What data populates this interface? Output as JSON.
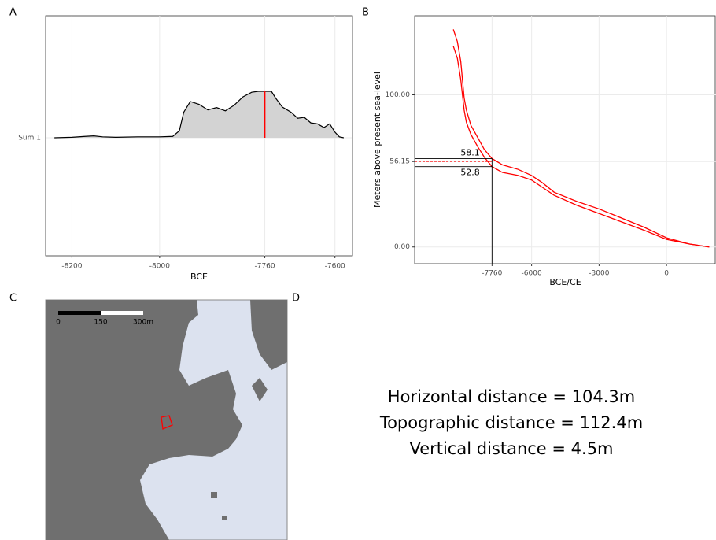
{
  "panels": [
    "A",
    "B",
    "C",
    "D"
  ],
  "chart_data": [
    {
      "type": "density",
      "categories": [
        "Sum 1"
      ],
      "x_label": "BCE",
      "x": [
        -8240,
        -8200,
        -8170,
        -8150,
        -8130,
        -8100,
        -8050,
        -8000,
        -7970,
        -7955,
        -7945,
        -7930,
        -7910,
        -7890,
        -7870,
        -7850,
        -7830,
        -7810,
        -7790,
        -7775,
        -7760,
        -7745,
        -7735,
        -7720,
        -7700,
        -7685,
        -7670,
        -7655,
        -7640,
        -7625,
        -7612,
        -7600,
        -7590,
        -7580
      ],
      "values": [
        0.0,
        0.01,
        0.03,
        0.04,
        0.02,
        0.01,
        0.02,
        0.02,
        0.03,
        0.15,
        0.55,
        0.78,
        0.72,
        0.6,
        0.65,
        0.58,
        0.7,
        0.88,
        0.98,
        1.0,
        1.0,
        1.0,
        0.85,
        0.66,
        0.55,
        0.42,
        0.44,
        0.32,
        0.3,
        0.22,
        0.3,
        0.12,
        0.02,
        0.0
      ],
      "fill_color": "#d3d3d3",
      "line_color": "#000000",
      "marker": -7760,
      "marker_color": "#ff0000",
      "xlim": [
        -8260,
        -7560
      ],
      "xticks": [
        -8200,
        -8000,
        -7760,
        -7600
      ],
      "grid": true
    },
    {
      "type": "line",
      "x_label": "BCE/CE",
      "y_label": "Meters above present sea-level",
      "series": [
        {
          "color": "#ff0000",
          "x": [
            -9480,
            -9300,
            -9150,
            -9000,
            -8900,
            -8700,
            -8400,
            -8100,
            -7760,
            -7300,
            -6600,
            -6000,
            -5500,
            -5000,
            -4000,
            -3000,
            -2000,
            -1000,
            0,
            1000,
            1900
          ],
          "values": [
            143,
            135,
            122,
            98,
            90,
            80,
            72,
            64,
            58.1,
            54,
            51,
            47,
            42,
            36,
            30,
            25,
            19,
            13,
            6,
            2,
            0
          ]
        },
        {
          "color": "#ff0000",
          "x": [
            -9480,
            -9300,
            -9150,
            -9000,
            -8900,
            -8700,
            -8400,
            -8100,
            -7760,
            -7300,
            -6600,
            -6000,
            -5500,
            -5000,
            -4000,
            -3000,
            -2000,
            -1000,
            0,
            1000,
            1900
          ],
          "values": [
            132,
            124,
            110,
            90,
            82,
            74,
            66,
            59,
            52.8,
            49,
            47,
            44,
            39,
            34,
            27.5,
            22,
            16.5,
            11,
            5,
            2,
            0
          ]
        }
      ],
      "reference": {
        "x": -7760,
        "upper": 58.1,
        "lower": 52.8,
        "mid": 56.15,
        "mid_color": "#ff0000"
      },
      "xlim": [
        -11200,
        2200
      ],
      "ylim": [
        -11,
        152
      ],
      "xticks": [
        -7760,
        -6000,
        -3000,
        0
      ],
      "yticks": [
        {
          "value": 0,
          "label": "0.00"
        },
        56.15,
        {
          "value": 100,
          "label": "100.00"
        }
      ],
      "grid": true
    }
  ],
  "map": {
    "scale_labels": [
      "0",
      "150",
      "300m"
    ]
  },
  "distances": [
    "Horizontal distance = 104.3m",
    "Topographic distance = 112.4m",
    "Vertical distance = 4.5m"
  ]
}
